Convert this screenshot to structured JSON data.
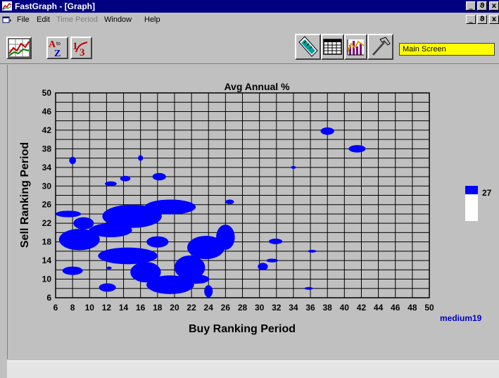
{
  "window": {
    "title": "FastGraph - [Graph]",
    "caption_buttons": [
      "_",
      "ϑ",
      "x"
    ],
    "child_buttons": [
      "_",
      "ϑ",
      "x"
    ]
  },
  "menu": {
    "items": [
      {
        "label": "File",
        "enabled": true
      },
      {
        "label": "Edit",
        "enabled": true
      },
      {
        "label": "Time Period",
        "enabled": false
      },
      {
        "label": "Window",
        "enabled": true
      },
      {
        "label": "Help",
        "enabled": true
      }
    ]
  },
  "toolbar": {
    "buttons": [
      {
        "icon": "line-chart-icon"
      },
      {
        "icon": "sort-az-icon"
      },
      {
        "icon": "sort-numeric-icon"
      },
      {
        "icon": "ruler-icon"
      },
      {
        "icon": "table-grid-icon"
      },
      {
        "icon": "bar-chart-icon"
      },
      {
        "icon": "hammer-icon"
      }
    ],
    "screen_field": "Main Screen"
  },
  "chart_data": {
    "type": "heatmap",
    "title": "Avg Annual %",
    "xlabel": "Buy Ranking Period",
    "ylabel": "Sell Ranking Period",
    "xlim": [
      6,
      50
    ],
    "ylim": [
      6,
      50
    ],
    "x_ticks": [
      6,
      8,
      10,
      12,
      14,
      16,
      18,
      20,
      22,
      24,
      26,
      28,
      30,
      32,
      34,
      36,
      38,
      40,
      42,
      44,
      46,
      48,
      50
    ],
    "y_ticks": [
      6,
      10,
      14,
      18,
      22,
      26,
      30,
      34,
      38,
      42,
      46,
      50
    ],
    "grid": true,
    "region_color": "#0000ff",
    "legend": {
      "threshold": "27",
      "color": "#0000ff",
      "position": "right"
    },
    "annotation": "medium19",
    "regions": [
      {
        "center": [
          8,
          35.5
        ],
        "radius": [
          0.4,
          0.8
        ]
      },
      {
        "center": [
          16,
          36
        ],
        "radius": [
          0.3,
          0.6
        ]
      },
      {
        "center": [
          38,
          41.8
        ],
        "radius": [
          0.8,
          0.8
        ]
      },
      {
        "center": [
          41.5,
          38
        ],
        "radius": [
          1.0,
          0.8
        ]
      },
      {
        "center": [
          34,
          34
        ],
        "radius": [
          0.3,
          0.3
        ]
      },
      {
        "center": [
          12.5,
          30.5
        ],
        "radius": [
          0.7,
          0.5
        ]
      },
      {
        "center": [
          14.2,
          31.6
        ],
        "radius": [
          0.6,
          0.6
        ]
      },
      {
        "center": [
          18.2,
          32
        ],
        "radius": [
          0.8,
          0.8
        ]
      },
      {
        "center": [
          26.5,
          26.6
        ],
        "radius": [
          0.5,
          0.5
        ]
      },
      {
        "center": [
          7.5,
          24
        ],
        "radius": [
          1.5,
          0.7
        ]
      },
      {
        "center": [
          15,
          23.5
        ],
        "radius": [
          3.5,
          2.5
        ]
      },
      {
        "center": [
          19.5,
          25.5
        ],
        "radius": [
          3,
          1.6
        ]
      },
      {
        "center": [
          12.5,
          20.5
        ],
        "radius": [
          2.5,
          1.5
        ]
      },
      {
        "center": [
          9.3,
          22
        ],
        "radius": [
          1.2,
          1.3
        ]
      },
      {
        "center": [
          8.8,
          18.5
        ],
        "radius": [
          2.4,
          2.3
        ]
      },
      {
        "center": [
          18,
          18
        ],
        "radius": [
          1.3,
          1.2
        ]
      },
      {
        "center": [
          14.5,
          15
        ],
        "radius": [
          3.5,
          1.8
        ]
      },
      {
        "center": [
          16.6,
          11.5
        ],
        "radius": [
          1.8,
          2.2
        ]
      },
      {
        "center": [
          19.5,
          8.8
        ],
        "radius": [
          2.8,
          2.0
        ]
      },
      {
        "center": [
          21.8,
          12.5
        ],
        "radius": [
          1.8,
          2.6
        ]
      },
      {
        "center": [
          23.7,
          16.8
        ],
        "radius": [
          2.2,
          2.5
        ]
      },
      {
        "center": [
          26,
          19
        ],
        "radius": [
          1.1,
          2.7
        ]
      },
      {
        "center": [
          22.5,
          10
        ],
        "radius": [
          1.6,
          1.0
        ]
      },
      {
        "center": [
          8,
          11.8
        ],
        "radius": [
          1.2,
          0.9
        ]
      },
      {
        "center": [
          12.1,
          8.2
        ],
        "radius": [
          1.0,
          0.9
        ]
      },
      {
        "center": [
          24,
          7.4
        ],
        "radius": [
          0.5,
          1.3
        ]
      },
      {
        "center": [
          12.3,
          12.4
        ],
        "radius": [
          0.3,
          0.3
        ]
      },
      {
        "center": [
          31.9,
          18.1
        ],
        "radius": [
          0.8,
          0.6
        ]
      },
      {
        "center": [
          31.5,
          14
        ],
        "radius": [
          0.7,
          0.4
        ]
      },
      {
        "center": [
          30.4,
          12.7
        ],
        "radius": [
          0.6,
          0.8
        ]
      },
      {
        "center": [
          36.2,
          16
        ],
        "radius": [
          0.5,
          0.3
        ]
      },
      {
        "center": [
          35.8,
          8
        ],
        "radius": [
          0.5,
          0.3
        ]
      }
    ]
  }
}
